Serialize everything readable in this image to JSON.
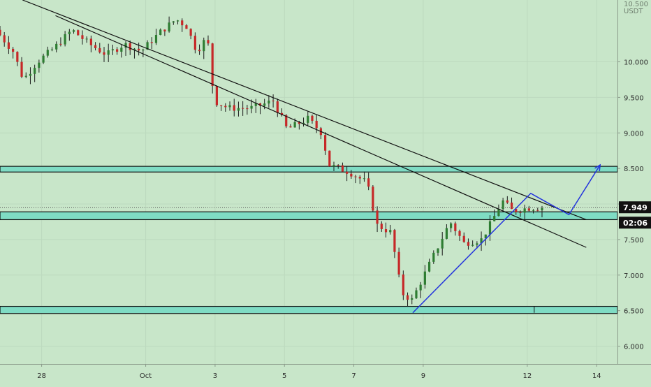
{
  "chart_data": {
    "type": "candlestick",
    "symbol_fragment": "10.500",
    "currency": "USDT",
    "ylim": [
      5.75,
      10.87
    ],
    "xlim": [
      -1.2,
      16.6
    ],
    "y_ticks": [
      {
        "value": 10.0,
        "label": "10.000"
      },
      {
        "value": 9.5,
        "label": "9.500"
      },
      {
        "value": 9.0,
        "label": "9.000"
      },
      {
        "value": 8.5,
        "label": "8.500"
      },
      {
        "value": 8.0,
        "label": "8.000"
      },
      {
        "value": 7.5,
        "label": "7.500"
      },
      {
        "value": 7.0,
        "label": "7.000"
      },
      {
        "value": 6.5,
        "label": "6.500"
      },
      {
        "value": 6.0,
        "label": "6.000"
      }
    ],
    "x_ticks": [
      {
        "x": 0.0,
        "label": "28"
      },
      {
        "x": 3.0,
        "label": "Oct"
      },
      {
        "x": 5.0,
        "label": "3"
      },
      {
        "x": 7.0,
        "label": "5"
      },
      {
        "x": 9.0,
        "label": "7"
      },
      {
        "x": 11.0,
        "label": "9"
      },
      {
        "x": 14.0,
        "label": "12"
      },
      {
        "x": 16.0,
        "label": "14"
      }
    ],
    "current_price": {
      "value": 7.949,
      "label": "7.949",
      "countdown": "02:06"
    },
    "grid": true,
    "support_resistance_zones": [
      {
        "low": 8.45,
        "high": 8.53
      },
      {
        "low": 7.78,
        "high": 7.89
      },
      {
        "low": 6.46,
        "high": 6.56
      }
    ],
    "trend_lines": [
      {
        "x1": -0.55,
        "y1": 10.87,
        "x2": 15.7,
        "y2": 7.78
      },
      {
        "x1": 0.4,
        "y1": 10.65,
        "x2": 15.7,
        "y2": 7.39
      }
    ],
    "projection_path": [
      {
        "x": 10.7,
        "y": 6.47
      },
      {
        "x": 14.1,
        "y": 8.15
      },
      {
        "x": 15.2,
        "y": 7.85
      },
      {
        "x": 16.1,
        "y": 8.55
      }
    ],
    "anchor": {
      "x": 14.2,
      "low": 6.47,
      "high": 6.56
    },
    "colors": {
      "background": "#c8e6c9",
      "up": "#2e7d32",
      "down": "#c62828",
      "wick": "#1b1b1b",
      "zone_fill": "#7fdcc4",
      "zone_border": "#111111",
      "trend_line": "#111111",
      "projection": "#2233dd",
      "price_label_bg": "#111111"
    }
  }
}
